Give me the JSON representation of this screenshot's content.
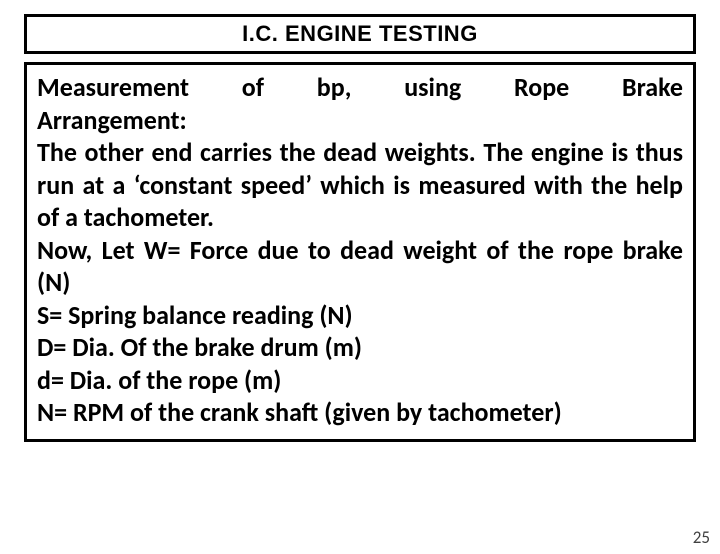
{
  "title": "I.C. ENGINE TESTING",
  "heading_line1": "Measurement of bp, using Rope Brake",
  "heading_line2": "Arrangement:",
  "para1": "The other end carries the dead weights. The engine is thus run at a ‘constant speed’ which is measured with the help of a tachometer.",
  "para2": "Now, Let W= Force due to dead weight of the rope brake (N)",
  "line_s": "S= Spring balance reading (N)",
  "line_dbig": "D= Dia. Of the brake drum (m)",
  "line_dsmall": "d= Dia. of the rope (m)",
  "line_n": "N= RPM of the crank shaft (given by tachometer)",
  "page_number": "25",
  "colors": {
    "border": "#000000",
    "background": "#ffffff",
    "text": "#000000",
    "pagenum": "#404040"
  }
}
